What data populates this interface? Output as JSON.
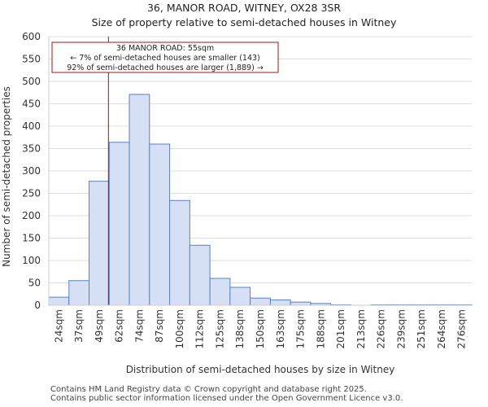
{
  "chart_data": {
    "type": "bar",
    "title": "36, MANOR ROAD, WITNEY, OX28 3SR",
    "subtitle": "Size of property relative to semi-detached houses in Witney",
    "xlabel": "Distribution of semi-detached houses by size in Witney",
    "ylabel": "Number of semi-detached properties",
    "categories": [
      "24sqm",
      "37sqm",
      "49sqm",
      "62sqm",
      "74sqm",
      "87sqm",
      "100sqm",
      "112sqm",
      "125sqm",
      "138sqm",
      "150sqm",
      "163sqm",
      "175sqm",
      "188sqm",
      "201sqm",
      "213sqm",
      "226sqm",
      "239sqm",
      "251sqm",
      "264sqm",
      "276sqm"
    ],
    "values": [
      18,
      55,
      277,
      364,
      471,
      360,
      234,
      134,
      60,
      40,
      16,
      12,
      7,
      4,
      1,
      0,
      1,
      1,
      1,
      1,
      1
    ],
    "ylim": [
      0,
      600
    ],
    "yticks": [
      0,
      50,
      100,
      150,
      200,
      250,
      300,
      350,
      400,
      450,
      500,
      550,
      600
    ],
    "grid": true,
    "bar_color": "#d6e0f5",
    "bar_edge_color": "#5b7fc2",
    "marker": {
      "value_sqm": 55,
      "color": "#aa1111",
      "annotation": [
        "36 MANOR ROAD: 55sqm",
        "← 7% of semi-detached houses are smaller (143)",
        "92% of semi-detached houses are larger (1,889) →"
      ]
    }
  },
  "footer": {
    "line1": "Contains HM Land Registry data © Crown copyright and database right 2025.",
    "line2": "Contains public sector information licensed under the Open Government Licence v3.0."
  }
}
